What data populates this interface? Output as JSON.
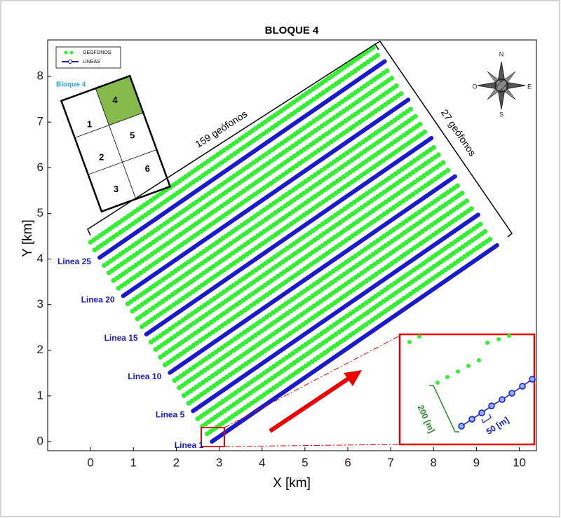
{
  "chart_data": {
    "type": "line",
    "title": "BLOQUE 4",
    "xlabel": "X [km]",
    "ylabel": "Y [km]",
    "xlim": [
      -1,
      10.4
    ],
    "ylim": [
      -0.2,
      8.8
    ],
    "xticks": [
      0,
      1,
      2,
      3,
      4,
      5,
      6,
      7,
      8,
      9,
      10
    ],
    "yticks": [
      0,
      1,
      2,
      3,
      4,
      5,
      6,
      7,
      8
    ],
    "series": [
      {
        "name": "GEOFONOS",
        "color": "#33ee33",
        "lines": [
          {
            "x": [
              2.72,
              9.37
            ],
            "y": [
              0.17,
              4.47
            ]
          },
          {
            "x": [
              2.61,
              9.26
            ],
            "y": [
              0.34,
              4.64
            ]
          },
          {
            "x": [
              2.5,
              9.15
            ],
            "y": [
              0.5,
              4.8
            ]
          },
          {
            "x": [
              2.29,
              8.94
            ],
            "y": [
              0.84,
              5.14
            ]
          },
          {
            "x": [
              2.18,
              8.83
            ],
            "y": [
              1.01,
              5.31
            ]
          },
          {
            "x": [
              2.07,
              8.72
            ],
            "y": [
              1.18,
              5.48
            ]
          },
          {
            "x": [
              1.96,
              8.61
            ],
            "y": [
              1.34,
              5.64
            ]
          },
          {
            "x": [
              1.74,
              8.39
            ],
            "y": [
              1.68,
              5.98
            ]
          },
          {
            "x": [
              1.63,
              8.28
            ],
            "y": [
              1.85,
              6.15
            ]
          },
          {
            "x": [
              1.52,
              8.17
            ],
            "y": [
              2.02,
              6.32
            ]
          },
          {
            "x": [
              1.41,
              8.06
            ],
            "y": [
              2.18,
              6.48
            ]
          },
          {
            "x": [
              1.2,
              7.85
            ],
            "y": [
              2.52,
              6.82
            ]
          },
          {
            "x": [
              1.09,
              7.74
            ],
            "y": [
              2.69,
              6.99
            ]
          },
          {
            "x": [
              0.98,
              7.63
            ],
            "y": [
              2.86,
              7.16
            ]
          },
          {
            "x": [
              0.87,
              7.52
            ],
            "y": [
              3.02,
              7.32
            ]
          },
          {
            "x": [
              0.65,
              7.3
            ],
            "y": [
              3.36,
              7.66
            ]
          },
          {
            "x": [
              0.54,
              7.19
            ],
            "y": [
              3.53,
              7.83
            ]
          },
          {
            "x": [
              0.43,
              7.08
            ],
            "y": [
              3.7,
              8.0
            ]
          },
          {
            "x": [
              0.32,
              6.97
            ],
            "y": [
              3.86,
              8.16
            ]
          },
          {
            "x": [
              0.1,
              6.75
            ],
            "y": [
              4.2,
              8.5
            ]
          },
          {
            "x": [
              0.0,
              6.65
            ],
            "y": [
              4.37,
              8.67
            ]
          }
        ]
      },
      {
        "name": "LINEAS",
        "color": "#1a1acc",
        "lines": [
          {
            "label": "Linea 1",
            "x": [
              2.83,
              9.48
            ],
            "y": [
              0.0,
              4.3
            ]
          },
          {
            "label": "Linea 5",
            "x": [
              2.39,
              9.04
            ],
            "y": [
              0.67,
              4.97
            ]
          },
          {
            "label": "Linea 10",
            "x": [
              1.85,
              8.5
            ],
            "y": [
              1.51,
              5.81
            ]
          },
          {
            "label": "Linea 15",
            "x": [
              1.3,
              7.95
            ],
            "y": [
              2.35,
              6.65
            ]
          },
          {
            "label": "Linea 20",
            "x": [
              0.76,
              7.41
            ],
            "y": [
              3.19,
              7.49
            ]
          },
          {
            "label": "Linea 25",
            "x": [
              0.21,
              6.86
            ],
            "y": [
              4.03,
              8.33
            ]
          }
        ]
      }
    ],
    "annotations": [
      "159 geófonos",
      "27 geófonos",
      "200 [m]",
      "50 [m]"
    ],
    "block_map": {
      "title": "Bloque 4",
      "cells": [
        "1",
        "2",
        "3",
        "4",
        "5",
        "6"
      ]
    },
    "compass": [
      "N",
      "S",
      "E",
      "O"
    ]
  }
}
